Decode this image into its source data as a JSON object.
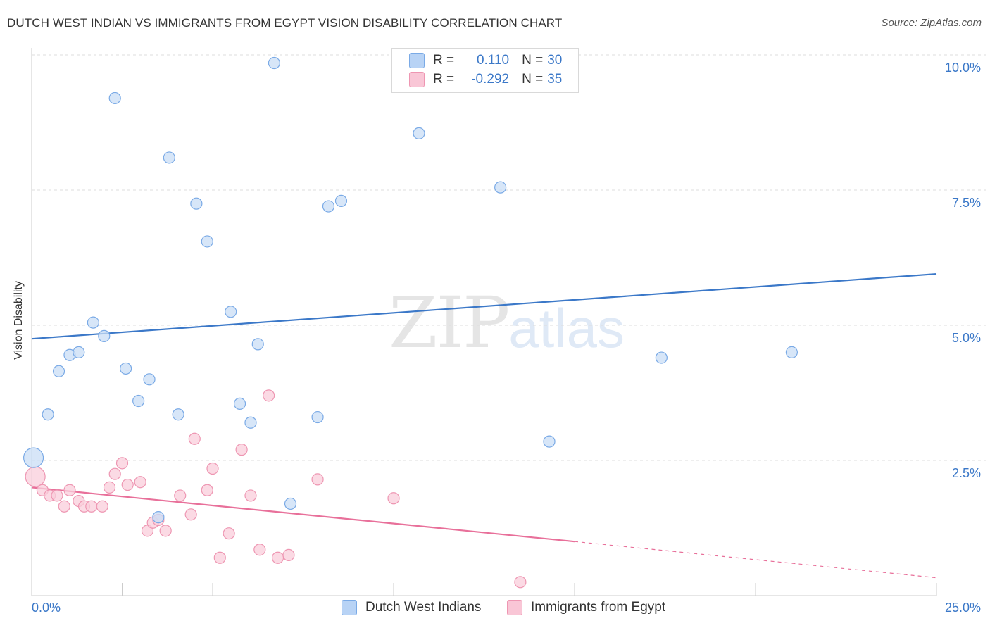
{
  "header": {
    "title": "DUTCH WEST INDIAN VS IMMIGRANTS FROM EGYPT VISION DISABILITY CORRELATION CHART",
    "source": "Source: ZipAtlas.com"
  },
  "watermark": {
    "zip": "ZIP",
    "atlas": "atlas"
  },
  "legend": {
    "rows": [
      {
        "r_label": "R =",
        "r_value": "0.110",
        "n_label": "N =",
        "n_value": "30"
      },
      {
        "r_label": "R =",
        "r_value": "-0.292",
        "n_label": "N =",
        "n_value": "35"
      }
    ]
  },
  "colors": {
    "blue": "#3b78c8",
    "blue_fill": "#c9ddf6",
    "blue_stroke": "#7aaae6",
    "pink": "#e8709a",
    "pink_fill": "#f9cddb",
    "pink_stroke": "#ee96b2",
    "grid": "#dddddd",
    "axis": "#cccccc"
  },
  "chart_data": {
    "type": "scatter",
    "title": "DUTCH WEST INDIAN VS IMMIGRANTS FROM EGYPT VISION DISABILITY CORRELATION CHART",
    "xlabel": "",
    "ylabel": "Vision Disability",
    "xlim": [
      0,
      25
    ],
    "ylim": [
      0,
      10
    ],
    "x_tick_labels": [
      "0.0%",
      "25.0%"
    ],
    "y_ticks": [
      {
        "value": 2.5,
        "label": "2.5%"
      },
      {
        "value": 5.0,
        "label": "5.0%"
      },
      {
        "value": 7.5,
        "label": "7.5%"
      },
      {
        "value": 10.0,
        "label": "10.0%"
      }
    ],
    "grid": true,
    "legend_position": "top-center",
    "series": [
      {
        "name": "Dutch West Indians",
        "color": "#3b78c8",
        "r": 0.11,
        "n": 30,
        "points": [
          [
            0.05,
            2.55
          ],
          [
            0.45,
            3.35
          ],
          [
            0.75,
            4.15
          ],
          [
            1.05,
            4.45
          ],
          [
            1.3,
            4.5
          ],
          [
            1.7,
            5.05
          ],
          [
            2.0,
            4.8
          ],
          [
            2.3,
            9.2
          ],
          [
            2.6,
            4.2
          ],
          [
            2.95,
            3.6
          ],
          [
            3.25,
            4.0
          ],
          [
            3.5,
            1.45
          ],
          [
            3.8,
            8.1
          ],
          [
            4.05,
            3.35
          ],
          [
            4.55,
            7.25
          ],
          [
            4.85,
            6.55
          ],
          [
            5.5,
            5.25
          ],
          [
            5.75,
            3.55
          ],
          [
            6.05,
            3.2
          ],
          [
            6.25,
            4.65
          ],
          [
            6.7,
            9.85
          ],
          [
            7.15,
            1.7
          ],
          [
            7.9,
            3.3
          ],
          [
            8.2,
            7.2
          ],
          [
            8.55,
            7.3
          ],
          [
            10.7,
            8.55
          ],
          [
            12.95,
            7.55
          ],
          [
            14.3,
            2.85
          ],
          [
            17.4,
            4.4
          ],
          [
            21.0,
            4.5
          ]
        ],
        "trend": {
          "x": [
            0,
            25
          ],
          "y": [
            4.75,
            5.95
          ]
        }
      },
      {
        "name": "Immigrants from Egypt",
        "color": "#e8709a",
        "r": -0.292,
        "n": 35,
        "points": [
          [
            0.1,
            2.2
          ],
          [
            0.3,
            1.95
          ],
          [
            0.5,
            1.85
          ],
          [
            0.7,
            1.85
          ],
          [
            0.9,
            1.65
          ],
          [
            1.05,
            1.95
          ],
          [
            1.3,
            1.75
          ],
          [
            1.45,
            1.65
          ],
          [
            1.65,
            1.65
          ],
          [
            1.95,
            1.65
          ],
          [
            2.15,
            2.0
          ],
          [
            2.3,
            2.25
          ],
          [
            2.5,
            2.45
          ],
          [
            2.65,
            2.05
          ],
          [
            3.0,
            2.1
          ],
          [
            3.2,
            1.2
          ],
          [
            3.35,
            1.35
          ],
          [
            3.5,
            1.4
          ],
          [
            3.7,
            1.2
          ],
          [
            4.1,
            1.85
          ],
          [
            4.4,
            1.5
          ],
          [
            4.5,
            2.9
          ],
          [
            4.85,
            1.95
          ],
          [
            5.0,
            2.35
          ],
          [
            5.2,
            0.7
          ],
          [
            5.45,
            1.15
          ],
          [
            5.8,
            2.7
          ],
          [
            6.05,
            1.85
          ],
          [
            6.3,
            0.85
          ],
          [
            6.55,
            3.7
          ],
          [
            6.8,
            0.7
          ],
          [
            7.1,
            0.75
          ],
          [
            7.9,
            2.15
          ],
          [
            10.0,
            1.8
          ],
          [
            13.5,
            0.25
          ]
        ],
        "trend": {
          "x": [
            0,
            15
          ],
          "y": [
            2.0,
            1.0
          ]
        },
        "trend_dashed": {
          "x": [
            15,
            25
          ],
          "y": [
            1.0,
            0.33
          ]
        }
      }
    ]
  }
}
